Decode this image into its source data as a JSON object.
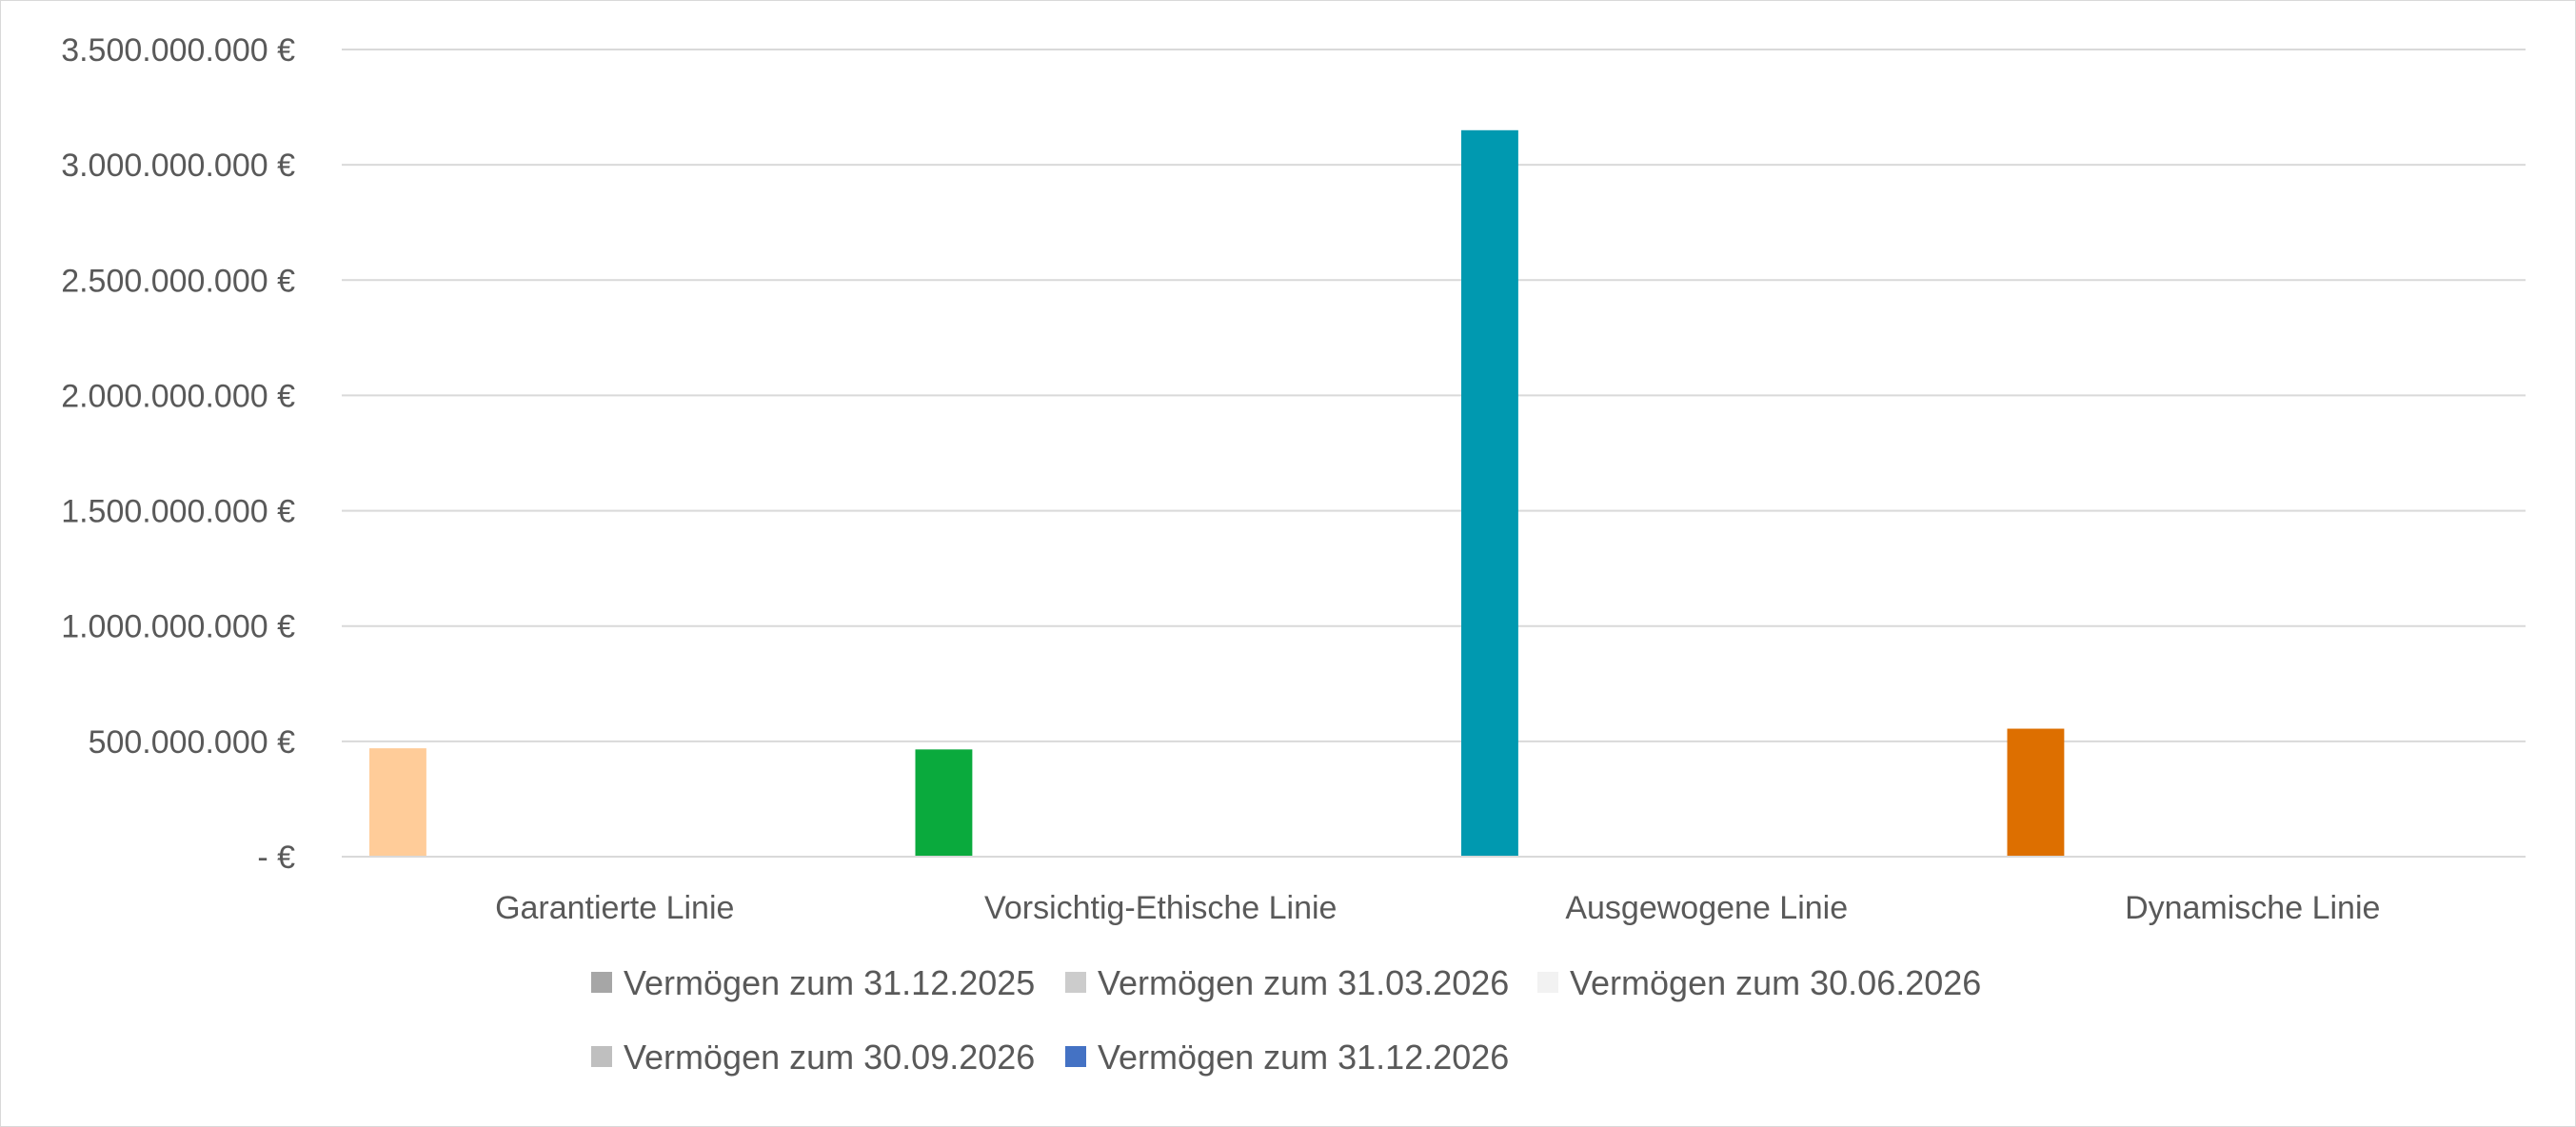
{
  "chart_data": {
    "type": "bar",
    "title": "",
    "xlabel": "",
    "ylabel": "",
    "ylim": [
      0,
      3500000000
    ],
    "ytick_values": [
      0,
      500000000,
      1000000000,
      1500000000,
      2000000000,
      2500000000,
      3000000000,
      3500000000
    ],
    "ytick_labels": [
      "-  €",
      "500.000.000 €",
      "1.000.000.000 €",
      "1.500.000.000 €",
      "2.000.000.000 €",
      "2.500.000.000 €",
      "3.000.000.000 €",
      "3.500.000.000 €"
    ],
    "grid": true,
    "legend_position": "bottom",
    "categories": [
      "Garantierte Linie",
      "Vorsichtig-Ethische Linie",
      "Ausgewogene Linie",
      "Dynamische Linie"
    ],
    "point_colors": [
      "#FFCC99",
      "#0AAA3D",
      "#0099B0",
      "#DD6F00"
    ],
    "series": [
      {
        "name": "Vermögen zum 31.12.2025",
        "legend_color": "#A6A6A6",
        "values": [
          470000000,
          465000000,
          3150000000,
          555000000
        ]
      },
      {
        "name": "Vermögen zum 31.03.2026",
        "legend_color": "#CCCCCC",
        "values": [
          0,
          0,
          0,
          0
        ]
      },
      {
        "name": "Vermögen zum 30.06.2026",
        "legend_color": "#F2F2F2",
        "values": [
          0,
          0,
          0,
          0
        ]
      },
      {
        "name": "Vermögen zum 30.09.2026",
        "legend_color": "#BFBFBF",
        "values": [
          0,
          0,
          0,
          0
        ]
      },
      {
        "name": "Vermögen zum 31.12.2026",
        "legend_color": "#4472C4",
        "values": [
          0,
          0,
          0,
          0
        ]
      }
    ],
    "legend_rows": [
      [
        0,
        1,
        2
      ],
      [
        3,
        4
      ]
    ]
  }
}
